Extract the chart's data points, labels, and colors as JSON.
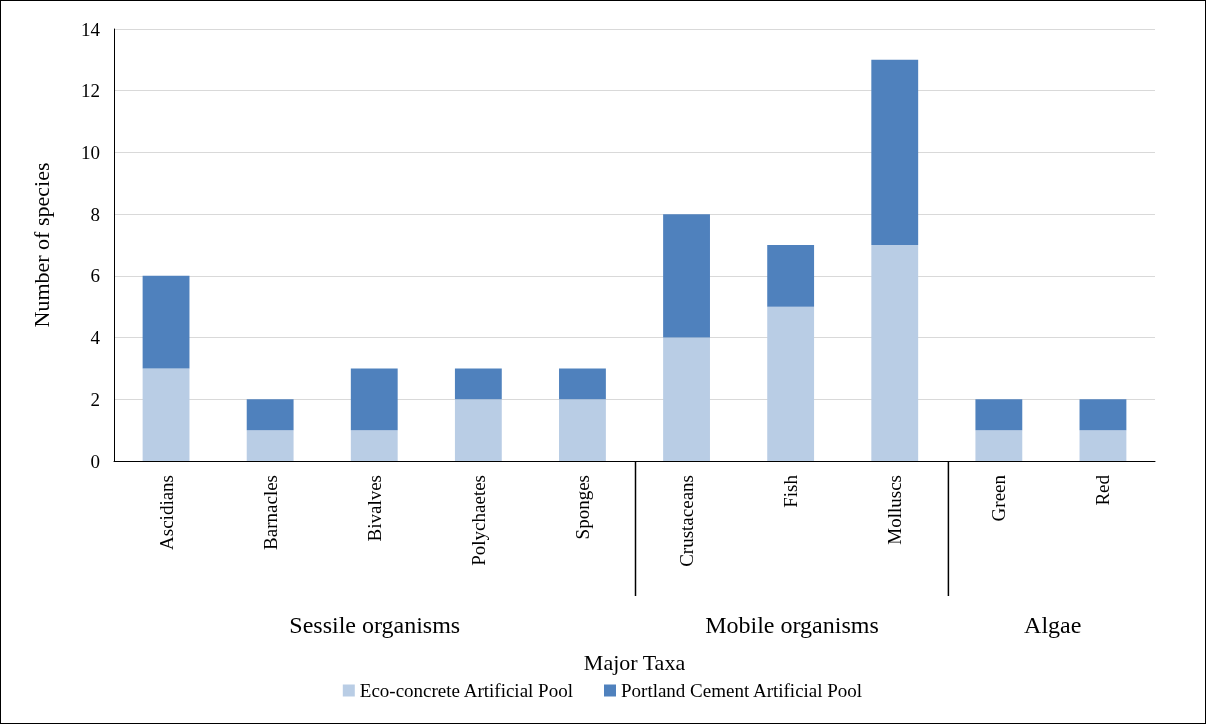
{
  "chart_data": {
    "type": "bar",
    "stacked": true,
    "categories": [
      "Ascidians",
      "Barnacles",
      "Bivalves",
      "Polychaetes",
      "Sponges",
      "Crustaceans",
      "Fish",
      "Molluscs",
      "Green",
      "Red"
    ],
    "series": [
      {
        "name": "Eco-concrete Artificial Pool",
        "color": "#b9cde5",
        "values": [
          3,
          1,
          1,
          2,
          2,
          4,
          5,
          7,
          1,
          1
        ]
      },
      {
        "name": "Portland Cement Artificial Pool",
        "color": "#4f81bd",
        "values": [
          3,
          1,
          2,
          1,
          1,
          4,
          2,
          6,
          1,
          1
        ]
      }
    ],
    "xlabel": "Major Taxa",
    "ylabel": "Number of species",
    "annotations": [
      "Sessile organisms",
      "Mobile organisms",
      "Algae"
    ],
    "ylim": [
      0,
      14
    ],
    "yticks": [
      0,
      2,
      4,
      6,
      8,
      10,
      12,
      14
    ],
    "grid": "y",
    "legend": "bottom"
  }
}
